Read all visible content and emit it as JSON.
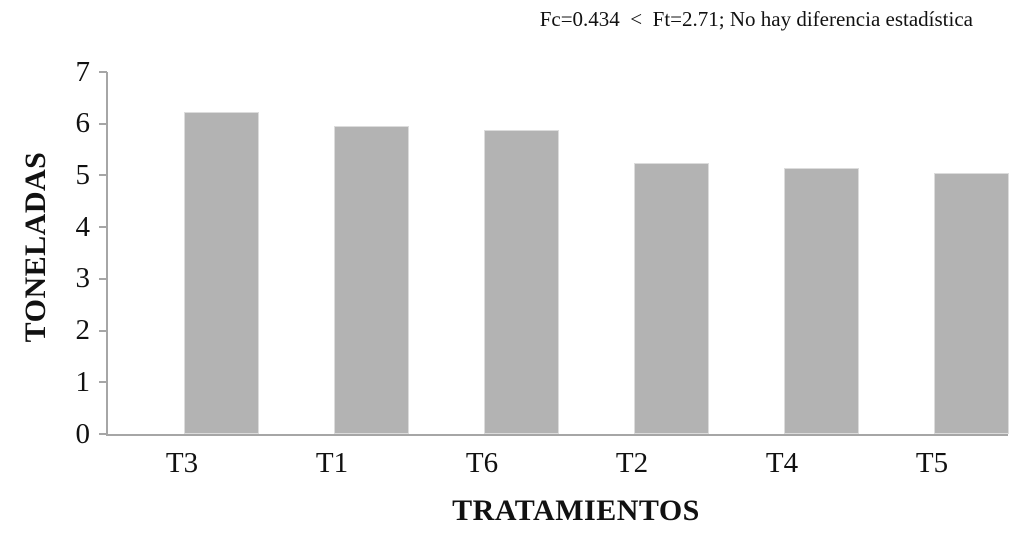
{
  "chart_data": {
    "type": "bar",
    "title": "",
    "annotation": "Fc=0.434  <  Ft=2.71; No hay diferencia estadística",
    "xlabel": "TRATAMIENTOS",
    "ylabel": "TONELADAS",
    "categories": [
      "T3",
      "T1",
      "T6",
      "T2",
      "T4",
      "T5"
    ],
    "values": [
      6.22,
      5.96,
      5.88,
      5.25,
      5.15,
      5.05
    ],
    "ylim": [
      0,
      7
    ],
    "yticks": [
      0,
      1,
      2,
      3,
      4,
      5,
      6,
      7
    ],
    "grid": false,
    "legend_position": "none",
    "bar_color": "#b3b3b3",
    "bar_border_color": "#dcdcdc",
    "axis_color": "#a6a6a6",
    "text_color": "#111111"
  }
}
